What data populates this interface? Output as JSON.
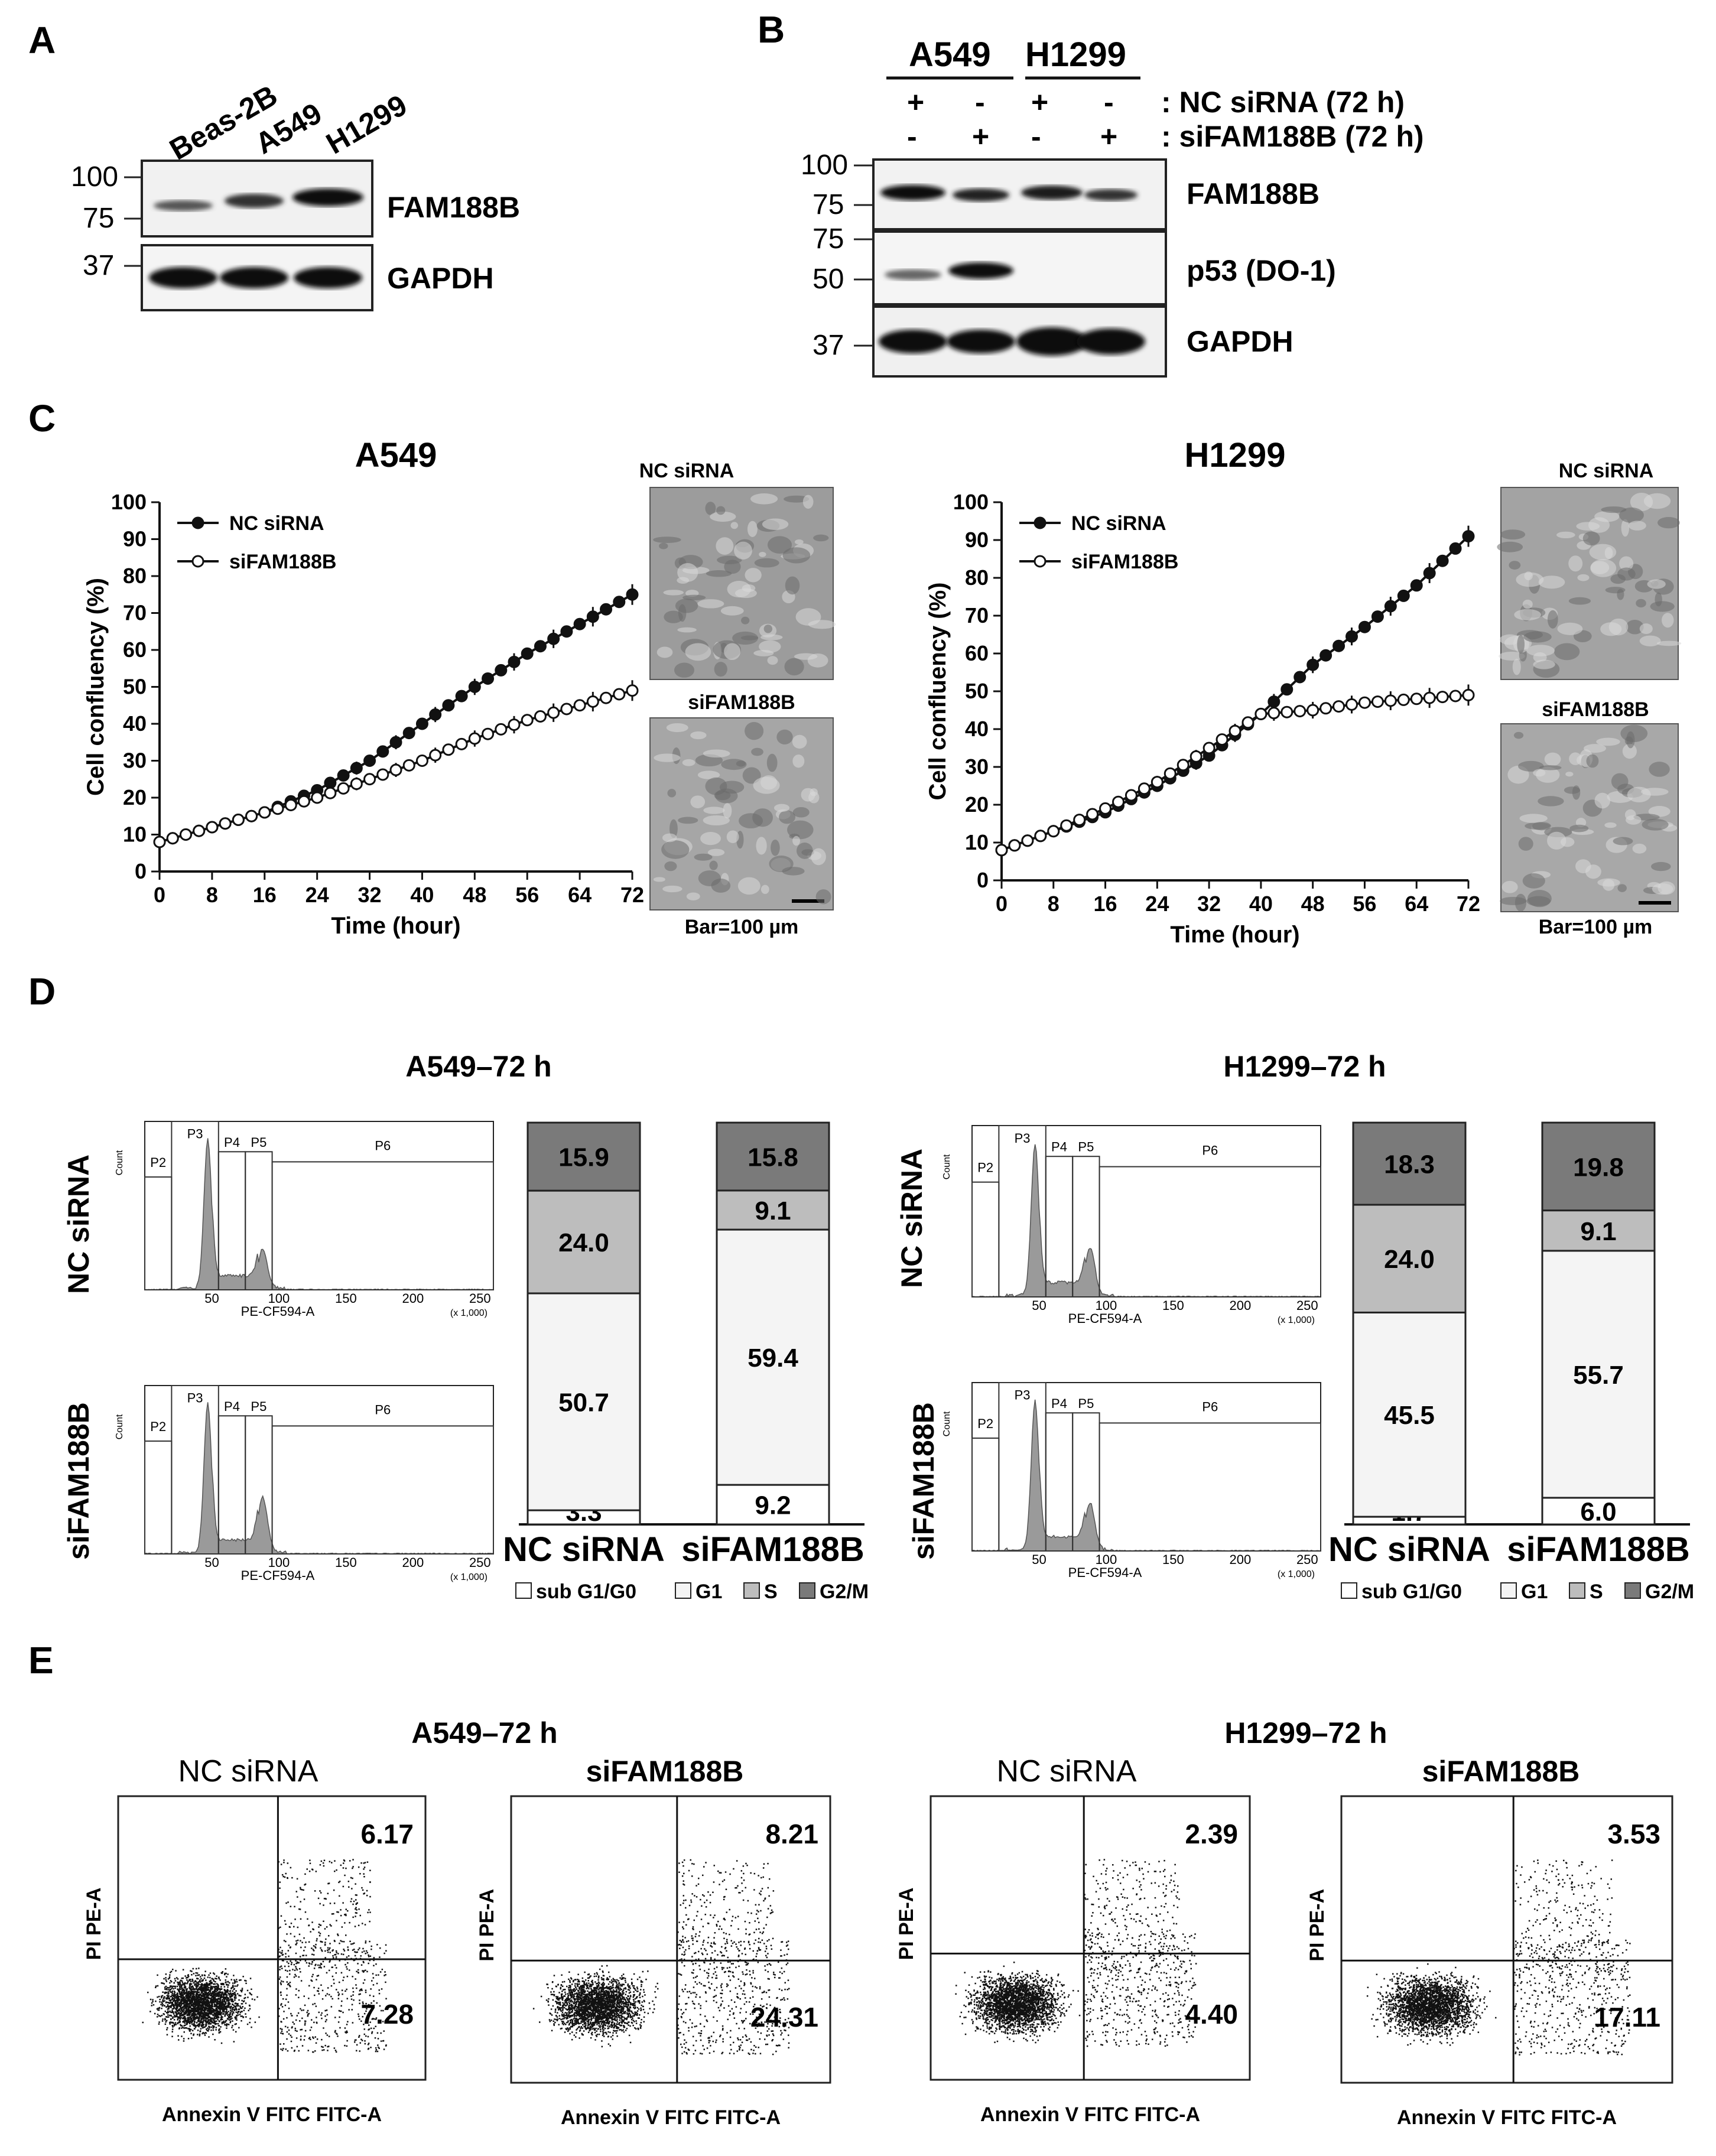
{
  "panels": {
    "A": {
      "letter": "A",
      "lanes": [
        "Beas-2B",
        "A549",
        "H1299"
      ],
      "markers": [
        "100",
        "75",
        "37"
      ],
      "bands": [
        "FAM188B",
        "GAPDH"
      ]
    },
    "B": {
      "letter": "B",
      "groups": [
        "A549",
        "H1299"
      ],
      "rows": [
        {
          "signs": [
            "+",
            "-",
            "+",
            "-"
          ],
          "label": ": NC siRNA (72 h)"
        },
        {
          "signs": [
            "-",
            "+",
            "-",
            "+"
          ],
          "label": ": siFAM188B (72 h)"
        }
      ],
      "markers": [
        "100",
        "75",
        "75",
        "50",
        "37"
      ],
      "bands": [
        "FAM188B",
        "p53 (DO-1)",
        "GAPDH"
      ]
    },
    "C": {
      "letter": "C",
      "micro_labels": [
        "NC siRNA",
        "siFAM188B"
      ],
      "scale_bar": "Bar=100 µm"
    },
    "D": {
      "letter": "D",
      "flow_axis": "PE-CF594-A",
      "flow_ylabel": "Count",
      "flow_scale": "(x 1,000)",
      "gates": [
        "P2",
        "P3",
        "P4",
        "P5",
        "P6"
      ],
      "flow_xticks": [
        "50",
        "100",
        "150",
        "200",
        "250"
      ],
      "row_labels": [
        "NC siRNA",
        "siFAM188B"
      ],
      "legend": [
        "sub G1/G0",
        "G1",
        "S",
        "G2/M"
      ]
    },
    "E": {
      "letter": "E",
      "xlabel": "Annexin V FITC FITC-A",
      "ylabel": "PI PE-A"
    }
  },
  "chart_data": [
    {
      "type": "line",
      "title": "A549",
      "xlabel": "Time (hour)",
      "ylabel": "Cell confluency (%)",
      "xticks": [
        0,
        8,
        16,
        24,
        32,
        40,
        48,
        56,
        64,
        72
      ],
      "yticks": [
        0,
        10,
        20,
        30,
        40,
        50,
        60,
        70,
        80,
        90,
        100
      ],
      "xlim": [
        0,
        72
      ],
      "ylim": [
        0,
        100
      ],
      "legend_position": "top-left",
      "x": [
        0,
        8,
        16,
        24,
        32,
        40,
        48,
        56,
        64,
        72
      ],
      "series": [
        {
          "name": "NC siRNA",
          "values": [
            8,
            12,
            16,
            22,
            30,
            40,
            50,
            59,
            67,
            75
          ]
        },
        {
          "name": "siFAM188B",
          "values": [
            8,
            12,
            16,
            20,
            25,
            30,
            36,
            41,
            45,
            49
          ]
        }
      ]
    },
    {
      "type": "line",
      "title": "H1299",
      "xlabel": "Time (hour)",
      "ylabel": "Cell confluency (%)",
      "xticks": [
        0,
        8,
        16,
        24,
        32,
        40,
        48,
        56,
        64,
        72
      ],
      "yticks": [
        0,
        10,
        20,
        30,
        40,
        50,
        60,
        70,
        80,
        90,
        100
      ],
      "xlim": [
        0,
        72
      ],
      "ylim": [
        0,
        100
      ],
      "legend_position": "top-left",
      "x": [
        0,
        8,
        16,
        24,
        32,
        40,
        48,
        56,
        64,
        72
      ],
      "series": [
        {
          "name": "NC siRNA",
          "values": [
            8,
            13,
            18,
            25,
            33,
            44,
            57,
            67,
            78,
            91
          ]
        },
        {
          "name": "siFAM188B",
          "values": [
            8,
            13,
            19,
            26,
            35,
            44,
            45,
            47,
            48,
            49
          ]
        }
      ]
    },
    {
      "type": "bar",
      "stacked": true,
      "title": "A549–72 h",
      "categories": [
        "NC siRNA",
        "siFAM188B"
      ],
      "series": [
        {
          "name": "sub G1/G0",
          "values": [
            3.3,
            9.2
          ]
        },
        {
          "name": "G1",
          "values": [
            50.7,
            59.4
          ]
        },
        {
          "name": "S",
          "values": [
            24.0,
            9.1
          ]
        },
        {
          "name": "G2/M",
          "values": [
            15.9,
            15.8
          ]
        }
      ]
    },
    {
      "type": "bar",
      "stacked": true,
      "title": "H1299–72 h",
      "categories": [
        "NC siRNA",
        "siFAM188B"
      ],
      "series": [
        {
          "name": "sub G1/G0",
          "values": [
            1.7,
            6.0
          ]
        },
        {
          "name": "G1",
          "values": [
            45.5,
            55.7
          ]
        },
        {
          "name": "S",
          "values": [
            24.0,
            9.1
          ]
        },
        {
          "name": "G2/M",
          "values": [
            18.3,
            19.8
          ]
        }
      ]
    },
    {
      "type": "scatter",
      "title": "A549–72 h",
      "plots": [
        {
          "title": "NC siRNA",
          "upper_right": "6.17",
          "lower_right": "7.28"
        },
        {
          "title": "siFAM188B",
          "upper_right": "8.21",
          "lower_right": "24.31"
        }
      ]
    },
    {
      "type": "scatter",
      "title": "H1299–72 h",
      "plots": [
        {
          "title": "NC siRNA",
          "upper_right": "2.39",
          "lower_right": "4.40"
        },
        {
          "title": "siFAM188B",
          "upper_right": "3.53",
          "lower_right": "17.11"
        }
      ]
    }
  ]
}
